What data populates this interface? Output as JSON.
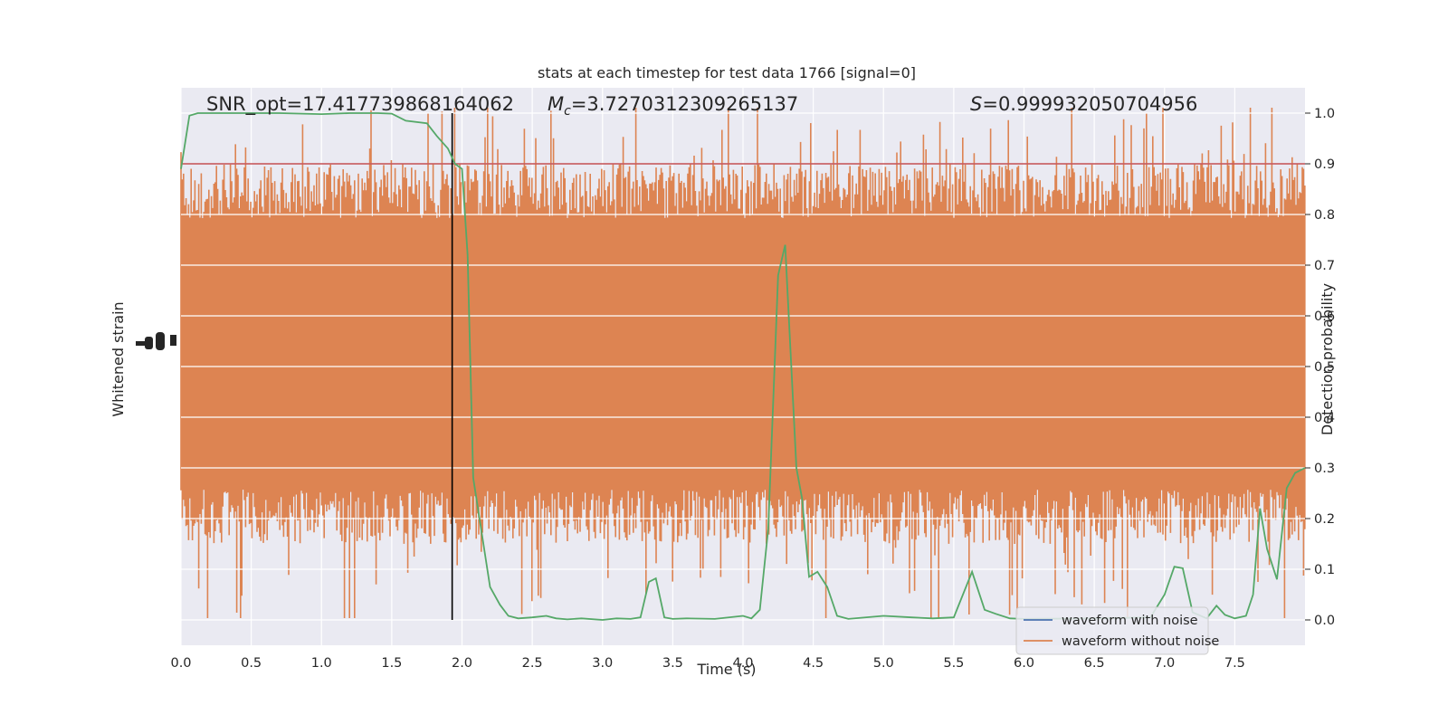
{
  "chart_data": {
    "type": "line",
    "title": "stats at each timestep for test data 1766 [signal=0]",
    "xlabel": "Time (s)",
    "ylabel_left": "Whitened strain",
    "ylabel_right": "Detection probability",
    "xlim": [
      0.0,
      8.0
    ],
    "ylim_right": [
      -0.05,
      1.05
    ],
    "xticks": [
      "0.0",
      "0.5",
      "1.0",
      "1.5",
      "2.0",
      "2.5",
      "3.0",
      "3.5",
      "4.0",
      "4.5",
      "5.0",
      "5.5",
      "6.0",
      "6.5",
      "7.0",
      "7.5"
    ],
    "xtick_values": [
      0.0,
      0.5,
      1.0,
      1.5,
      2.0,
      2.5,
      3.0,
      3.5,
      4.0,
      4.5,
      5.0,
      5.5,
      6.0,
      6.5,
      7.0,
      7.5
    ],
    "yticks_right": [
      "0.0",
      "0.1",
      "0.2",
      "0.3",
      "0.4",
      "0.5",
      "0.6",
      "0.7",
      "0.8",
      "0.9",
      "1.0"
    ],
    "ytick_right_values": [
      0.0,
      0.1,
      0.2,
      0.3,
      0.4,
      0.5,
      0.6,
      0.7,
      0.8,
      0.9,
      1.0
    ],
    "grid": true,
    "annotations": {
      "snr": "SNR_opt=17.417739868164062",
      "mc_symbol": "M",
      "mc_sub": "c",
      "mc_value": "=3.7270312309265137",
      "s_symbol": "S",
      "s_value": "=0.999932050704956"
    },
    "threshold": 0.9,
    "vline_x": 1.93,
    "colors": {
      "noise_band": "#dd8452",
      "probability": "#55a868",
      "threshold": "#c44e52",
      "vline": "#000000",
      "with_noise": "#4c72b0",
      "background": "#eaeaf2"
    },
    "legend": {
      "placement": "lower-right",
      "entries": [
        "waveform with noise",
        "waveform without noise"
      ]
    },
    "series": [
      {
        "name": "waveform with noise",
        "values": []
      },
      {
        "name": "waveform without noise",
        "values": []
      }
    ],
    "probability": {
      "x": [
        0.0,
        0.06,
        0.12,
        0.2,
        0.3,
        0.5,
        0.7,
        1.0,
        1.2,
        1.4,
        1.5,
        1.6,
        1.75,
        1.82,
        1.9,
        1.95,
        2.0,
        2.04,
        2.08,
        2.13,
        2.2,
        2.27,
        2.33,
        2.4,
        2.5,
        2.6,
        2.67,
        2.75,
        2.85,
        3.0,
        3.1,
        3.2,
        3.27,
        3.33,
        3.38,
        3.44,
        3.5,
        3.6,
        3.8,
        4.0,
        4.06,
        4.12,
        4.18,
        4.25,
        4.3,
        4.38,
        4.42,
        4.47,
        4.53,
        4.6,
        4.67,
        4.75,
        5.0,
        5.2,
        5.35,
        5.5,
        5.63,
        5.72,
        5.8,
        5.9,
        6.0,
        6.5,
        6.9,
        7.0,
        7.07,
        7.13,
        7.2,
        7.3,
        7.37,
        7.43,
        7.5,
        7.58,
        7.63,
        7.68,
        7.73,
        7.8,
        7.87,
        7.93,
        8.0
      ],
      "y": [
        0.89,
        0.995,
        1.0,
        1.0,
        1.0,
        1.0,
        1.0,
        0.998,
        1.0,
        1.0,
        0.999,
        0.985,
        0.98,
        0.955,
        0.93,
        0.9,
        0.89,
        0.72,
        0.28,
        0.19,
        0.065,
        0.03,
        0.008,
        0.003,
        0.005,
        0.008,
        0.003,
        0.001,
        0.003,
        0.0,
        0.003,
        0.002,
        0.005,
        0.075,
        0.082,
        0.005,
        0.002,
        0.003,
        0.002,
        0.008,
        0.003,
        0.02,
        0.18,
        0.68,
        0.74,
        0.3,
        0.24,
        0.085,
        0.095,
        0.065,
        0.008,
        0.002,
        0.008,
        0.005,
        0.003,
        0.005,
        0.095,
        0.02,
        0.012,
        0.003,
        0.002,
        0.003,
        0.005,
        0.05,
        0.105,
        0.102,
        0.015,
        0.003,
        0.028,
        0.01,
        0.003,
        0.008,
        0.05,
        0.22,
        0.14,
        0.08,
        0.26,
        0.29,
        0.3
      ]
    }
  }
}
